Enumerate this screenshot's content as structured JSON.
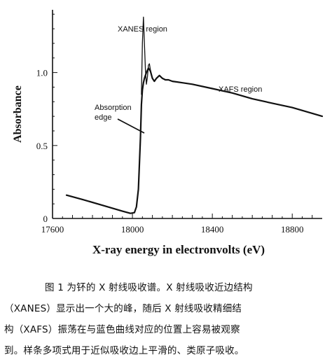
{
  "chart_data": {
    "type": "line",
    "xlabel": "X-ray energy in electronvolts (eV)",
    "ylabel": "Absorbance",
    "xlim": [
      17600,
      18950
    ],
    "ylim": [
      0,
      1.43
    ],
    "xticks": [
      "17600",
      "18000",
      "18400",
      "18800"
    ],
    "yticks": [
      "0",
      "0.5",
      "1.0"
    ],
    "annotations": {
      "xanes": "XANES region",
      "edge_line1": "Absorption",
      "edge_line2": "edge",
      "xafs": "XAFS region"
    },
    "series": [
      {
        "x": [
          17670,
          17750,
          17850,
          17950,
          17990,
          18010,
          18020,
          18030,
          18040,
          18045,
          18050,
          18055,
          18060,
          18070,
          18080,
          18090,
          18100,
          18110,
          18120,
          18135,
          18150,
          18165,
          18180,
          18200,
          18250,
          18300,
          18400,
          18500,
          18600,
          18700,
          18800,
          18950
        ],
        "y": [
          0.16,
          0.13,
          0.09,
          0.05,
          0.035,
          0.04,
          0.08,
          0.2,
          0.55,
          0.78,
          0.88,
          0.93,
          0.96,
          1.0,
          1.03,
          1.01,
          0.96,
          0.94,
          0.96,
          0.98,
          0.96,
          0.95,
          0.95,
          0.94,
          0.93,
          0.92,
          0.89,
          0.86,
          0.82,
          0.79,
          0.76,
          0.7
        ]
      },
      {
        "x": [
          18045,
          18050,
          18055,
          18060,
          18065,
          18070,
          18075,
          18080,
          18085,
          18090,
          18100
        ],
        "y": [
          0.85,
          1.2,
          1.38,
          1.2,
          1.02,
          0.92,
          0.97,
          1.05,
          1.06,
          1.02,
          0.96
        ]
      }
    ]
  },
  "caption": {
    "lines": [
      "图 1  为钚的 X 射线吸收谱。X 射线吸收近边结构",
      "（XANES）显示出一个大的峰，随后 X 射线吸收精细结",
      "构（XAFS）振荡在与蓝色曲线对应的位置上容易被观察",
      "到。样条多项式用于近似吸收边上平滑的、类原子吸收。"
    ]
  }
}
